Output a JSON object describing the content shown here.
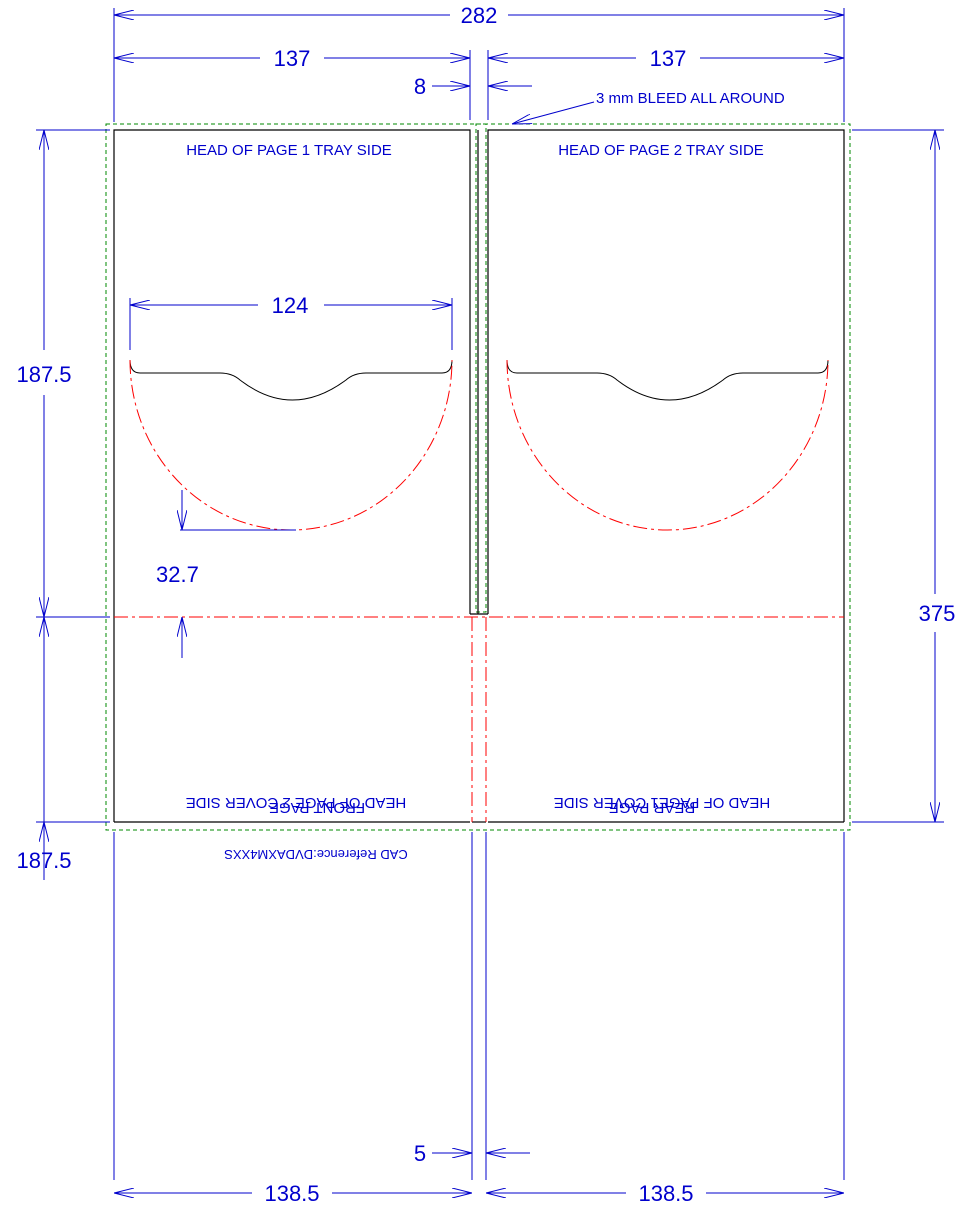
{
  "dimensions": {
    "overall_width": "282",
    "left_panel_width": "137",
    "right_panel_width": "137",
    "spine_gap": "8",
    "bleed_note": "3 mm BLEED ALL AROUND",
    "disc_width": "124",
    "top_height": "187.5",
    "bottom_height": "187.5",
    "overall_height": "375",
    "hub_offset": "32.7",
    "bottom_gap": "5",
    "bottom_left_width": "138.5",
    "bottom_right_width": "138.5"
  },
  "labels": {
    "head_page1_tray": "HEAD OF PAGE 1 TRAY SIDE",
    "head_page2_tray": "HEAD OF PAGE 2 TRAY SIDE",
    "front_page": "FRONT PAGE",
    "cad_reference": "CAD Reference:DVDAXM4XXS",
    "rear_page": "REAR PAGE",
    "head_page2_cover": "HEAD OF PAGE 2 COVER SIDE",
    "head_page1_cover": "HEAD OF PAGE1 COVER SIDE"
  },
  "colors": {
    "dimension": "#0000cc",
    "trim": "#000000",
    "bleed": "#008800",
    "fold": "#ff0000"
  }
}
